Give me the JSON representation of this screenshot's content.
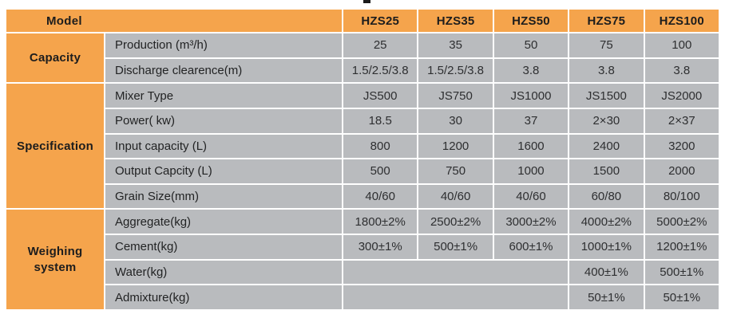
{
  "page": {
    "background_color": "#ffffff",
    "artifact_note": "tiny cropped text fragment at top center"
  },
  "table": {
    "colors": {
      "header_orange": "#f5a44c",
      "cell_gray": "#b9bbbe",
      "separator_white": "#ffffff",
      "heading_text": "#1d1d1d",
      "body_text": "#2e2f31"
    },
    "header": {
      "model_label": "Model",
      "columns": [
        "HZS25",
        "HZS35",
        "HZS50",
        "HZS75",
        "HZS100"
      ]
    },
    "groups": [
      {
        "label": "Capacity",
        "rows": [
          {
            "label": "Production (m³/h)",
            "values": [
              "25",
              "35",
              "50",
              "75",
              "100"
            ]
          },
          {
            "label": "Discharge clearence(m)",
            "values": [
              "1.5/2.5/3.8",
              "1.5/2.5/3.8",
              "3.8",
              "3.8",
              "3.8"
            ]
          }
        ]
      },
      {
        "label": "Specification",
        "rows": [
          {
            "label": "Mixer Type",
            "values": [
              "JS500",
              "JS750",
              "JS1000",
              "JS1500",
              "JS2000"
            ]
          },
          {
            "label": "Power( kw)",
            "values": [
              "18.5",
              "30",
              "37",
              "2×30",
              "2×37"
            ]
          },
          {
            "label": "Input capacity (L)",
            "values": [
              "800",
              "1200",
              "1600",
              "2400",
              "3200"
            ]
          },
          {
            "label": "Output Capcity (L)",
            "values": [
              "500",
              "750",
              "1000",
              "1500",
              "2000"
            ]
          },
          {
            "label": "Grain Size(mm)",
            "values": [
              "40/60",
              "40/60",
              "40/60",
              "60/80",
              "80/100"
            ]
          }
        ]
      },
      {
        "label": "Weighing system",
        "rows": [
          {
            "label": "Aggregate(kg)",
            "values": [
              "1800±2%",
              "2500±2%",
              "3000±2%",
              "4000±2%",
              "5000±2%"
            ]
          },
          {
            "label": "Cement(kg)",
            "values": [
              "300±1%",
              "500±1%",
              "600±1%",
              "1000±1%",
              "1200±1%"
            ]
          },
          {
            "label": "Water(kg)",
            "values": [
              "",
              "",
              "",
              "400±1%",
              "500±1%"
            ],
            "blank_merged_first_three": true
          },
          {
            "label": "Admixture(kg)",
            "values": [
              "",
              "",
              "",
              "50±1%",
              "50±1%"
            ],
            "blank_merged_first_three": true
          }
        ]
      }
    ]
  }
}
